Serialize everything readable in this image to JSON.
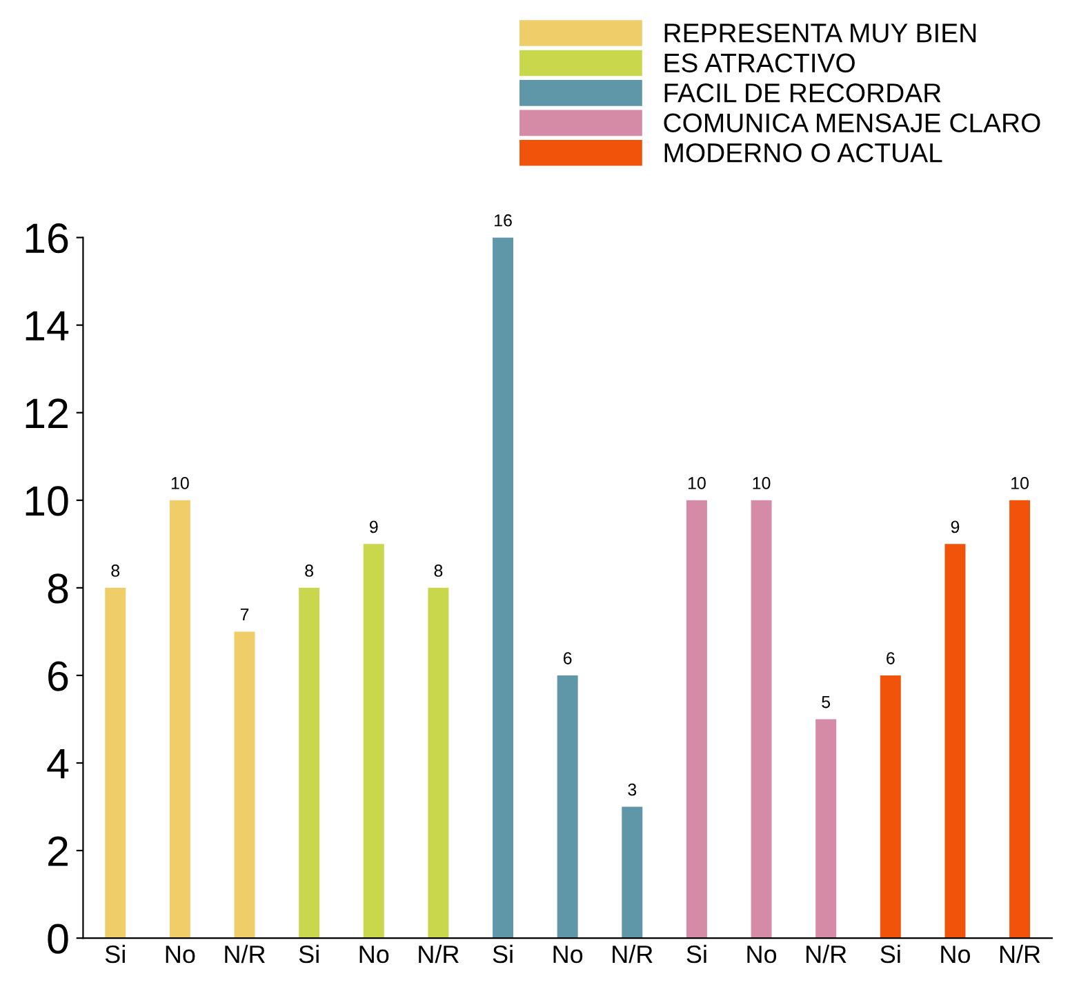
{
  "chart_data": {
    "type": "bar",
    "categories": [
      "Si",
      "No",
      "N/R",
      "Si",
      "No",
      "N/R",
      "Si",
      "No",
      "N/R",
      "Si",
      "No",
      "N/R",
      "Si",
      "No",
      "N/R"
    ],
    "series": [
      {
        "name": "REPRESENTA MUY BIEN",
        "color": "#efcd68",
        "values": [
          8,
          10,
          7,
          null,
          null,
          null,
          null,
          null,
          null,
          null,
          null,
          null,
          null,
          null,
          null
        ]
      },
      {
        "name": "ES ATRACTIVO",
        "color": "#c9d74c",
        "values": [
          null,
          null,
          null,
          8,
          9,
          8,
          null,
          null,
          null,
          null,
          null,
          null,
          null,
          null,
          null
        ]
      },
      {
        "name": "FACIL DE RECORDAR",
        "color": "#5f97a9",
        "values": [
          null,
          null,
          null,
          null,
          null,
          null,
          16,
          6,
          3,
          null,
          null,
          null,
          null,
          null,
          null
        ]
      },
      {
        "name": "COMUNICA MENSAJE CLARO",
        "color": "#d58ba5",
        "values": [
          null,
          null,
          null,
          null,
          null,
          null,
          null,
          null,
          null,
          10,
          10,
          5,
          null,
          null,
          null
        ]
      },
      {
        "name": "MODERNO O ACTUAL",
        "color": "#f05309",
        "values": [
          null,
          null,
          null,
          null,
          null,
          null,
          null,
          null,
          null,
          null,
          null,
          null,
          6,
          9,
          10
        ]
      }
    ],
    "ylim": [
      0,
      16
    ],
    "yticks": [
      0,
      2,
      4,
      6,
      8,
      10,
      12,
      14,
      16
    ],
    "data_labels": true,
    "grid": false,
    "legend": "top right"
  }
}
